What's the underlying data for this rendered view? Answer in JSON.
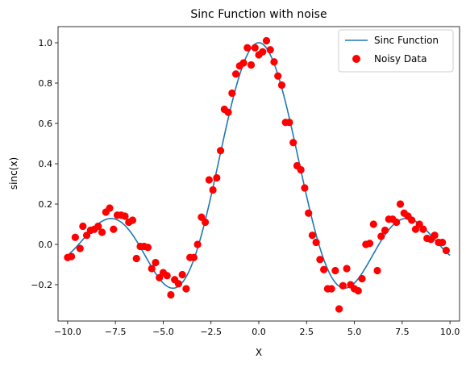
{
  "chart_data": {
    "type": "line",
    "title": "Sinc Function with noise",
    "xlabel": "X",
    "ylabel": "sinc(x)",
    "xlim": [
      -10.5,
      10.5
    ],
    "ylim": [
      -0.38,
      1.08
    ],
    "xticks": [
      -10.0,
      -7.5,
      -5.0,
      -2.5,
      0.0,
      2.5,
      5.0,
      7.5,
      10.0
    ],
    "xtick_labels": [
      "−10.0",
      "−7.5",
      "−5.0",
      "−2.5",
      "0.0",
      "2.5",
      "5.0",
      "7.5",
      "10.0"
    ],
    "yticks": [
      -0.2,
      0.0,
      0.2,
      0.4,
      0.6,
      0.8,
      1.0
    ],
    "ytick_labels": [
      "−0.2",
      "0.0",
      "0.2",
      "0.4",
      "0.6",
      "0.8",
      "1.0"
    ],
    "grid": false,
    "legend": {
      "position": "top-right",
      "entries": [
        "Sinc Function",
        "Noisy Data"
      ]
    },
    "colors": {
      "line": "#1f77b4",
      "points": "#ff0000"
    },
    "series": [
      {
        "name": "Sinc Function",
        "type": "line",
        "function": "sin(x)/x",
        "x_range": [
          -10,
          10
        ]
      },
      {
        "name": "Noisy Data",
        "type": "scatter",
        "points": [
          [
            -10.0,
            -0.065
          ],
          [
            -9.8,
            -0.06
          ],
          [
            -9.6,
            0.035
          ],
          [
            -9.35,
            -0.02
          ],
          [
            -9.2,
            0.09
          ],
          [
            -9.0,
            0.045
          ],
          [
            -8.8,
            0.07
          ],
          [
            -8.6,
            0.075
          ],
          [
            -8.4,
            0.09
          ],
          [
            -8.2,
            0.06
          ],
          [
            -8.0,
            0.16
          ],
          [
            -7.8,
            0.18
          ],
          [
            -7.6,
            0.075
          ],
          [
            -7.4,
            0.145
          ],
          [
            -7.2,
            0.145
          ],
          [
            -7.0,
            0.14
          ],
          [
            -6.8,
            0.11
          ],
          [
            -6.6,
            0.12
          ],
          [
            -6.4,
            -0.07
          ],
          [
            -6.2,
            -0.01
          ],
          [
            -6.0,
            -0.01
          ],
          [
            -5.8,
            -0.015
          ],
          [
            -5.6,
            -0.12
          ],
          [
            -5.4,
            -0.09
          ],
          [
            -5.2,
            -0.165
          ],
          [
            -5.0,
            -0.14
          ],
          [
            -4.8,
            -0.155
          ],
          [
            -4.6,
            -0.25
          ],
          [
            -4.4,
            -0.175
          ],
          [
            -4.2,
            -0.195
          ],
          [
            -4.0,
            -0.15
          ],
          [
            -3.8,
            -0.22
          ],
          [
            -3.6,
            -0.065
          ],
          [
            -3.4,
            -0.065
          ],
          [
            -3.2,
            0.0
          ],
          [
            -3.0,
            0.135
          ],
          [
            -2.8,
            0.11
          ],
          [
            -2.6,
            0.32
          ],
          [
            -2.4,
            0.27
          ],
          [
            -2.2,
            0.33
          ],
          [
            -2.0,
            0.465
          ],
          [
            -1.8,
            0.67
          ],
          [
            -1.6,
            0.655
          ],
          [
            -1.4,
            0.75
          ],
          [
            -1.2,
            0.845
          ],
          [
            -1.0,
            0.885
          ],
          [
            -0.8,
            0.9
          ],
          [
            -0.6,
            0.975
          ],
          [
            -0.4,
            0.89
          ],
          [
            -0.2,
            0.975
          ],
          [
            0.0,
            0.94
          ],
          [
            0.2,
            0.955
          ],
          [
            0.4,
            1.01
          ],
          [
            0.6,
            0.965
          ],
          [
            0.8,
            0.905
          ],
          [
            1.0,
            0.835
          ],
          [
            1.2,
            0.79
          ],
          [
            1.4,
            0.605
          ],
          [
            1.6,
            0.605
          ],
          [
            1.8,
            0.505
          ],
          [
            2.0,
            0.39
          ],
          [
            2.2,
            0.37
          ],
          [
            2.4,
            0.28
          ],
          [
            2.6,
            0.155
          ],
          [
            2.8,
            0.045
          ],
          [
            3.0,
            0.01
          ],
          [
            3.2,
            -0.075
          ],
          [
            3.4,
            -0.125
          ],
          [
            3.6,
            -0.22
          ],
          [
            3.8,
            -0.22
          ],
          [
            4.0,
            -0.13
          ],
          [
            4.2,
            -0.32
          ],
          [
            4.4,
            -0.205
          ],
          [
            4.6,
            -0.12
          ],
          [
            4.8,
            -0.2
          ],
          [
            5.0,
            -0.22
          ],
          [
            5.2,
            -0.23
          ],
          [
            5.4,
            -0.17
          ],
          [
            5.6,
            0.0
          ],
          [
            5.8,
            0.005
          ],
          [
            6.0,
            0.1
          ],
          [
            6.2,
            -0.13
          ],
          [
            6.4,
            0.04
          ],
          [
            6.6,
            0.07
          ],
          [
            6.8,
            0.125
          ],
          [
            7.0,
            0.125
          ],
          [
            7.2,
            0.11
          ],
          [
            7.4,
            0.2
          ],
          [
            7.6,
            0.155
          ],
          [
            7.8,
            0.14
          ],
          [
            8.0,
            0.12
          ],
          [
            8.2,
            0.075
          ],
          [
            8.4,
            0.1
          ],
          [
            8.6,
            0.075
          ],
          [
            8.8,
            0.03
          ],
          [
            9.0,
            0.025
          ],
          [
            9.2,
            0.045
          ],
          [
            9.4,
            0.01
          ],
          [
            9.6,
            0.01
          ],
          [
            9.8,
            -0.03
          ]
        ]
      }
    ]
  }
}
